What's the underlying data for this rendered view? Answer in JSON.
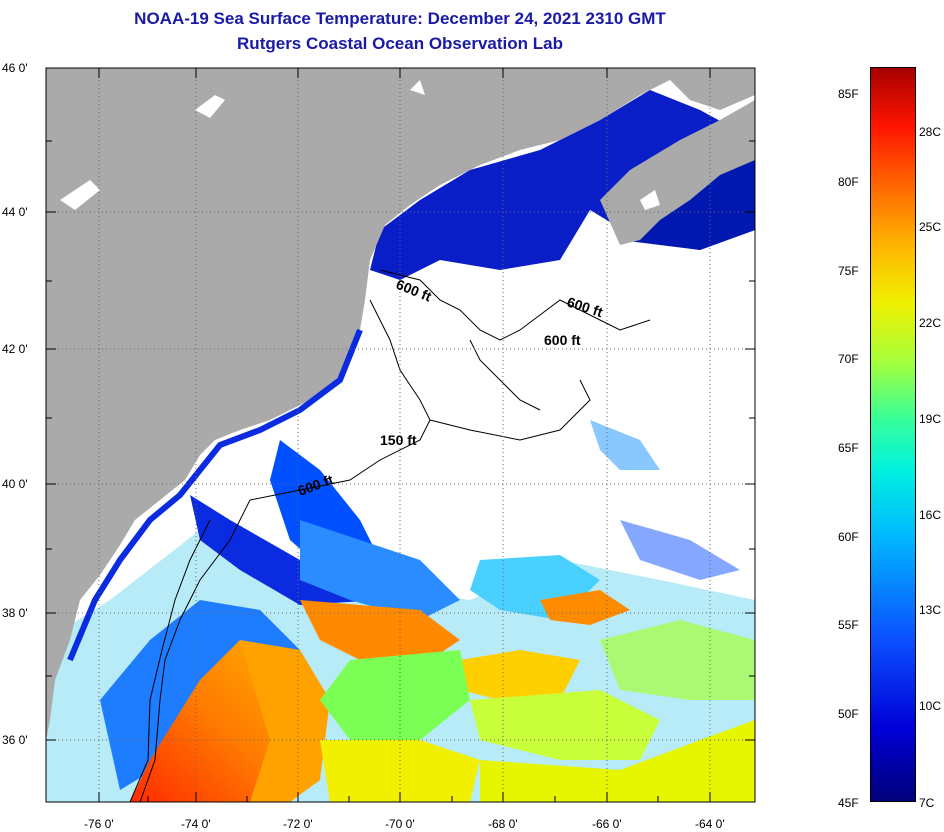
{
  "title": {
    "line1": "NOAA-19 Sea Surface Temperature:  December 24, 2021 2310 GMT",
    "line2": "Rutgers Coastal Ocean Observation Lab"
  },
  "axes": {
    "lat_labels": [
      "46 0'",
      "44 0'",
      "42 0'",
      "40 0'",
      "38 0'",
      "36 0'"
    ],
    "lon_labels": [
      "-76 0'",
      "-74 0'",
      "-72 0'",
      "-70 0'",
      "-68 0'",
      "-66 0'",
      "-64 0'"
    ]
  },
  "contours": {
    "c1": "600 ft",
    "c2": "600 ft",
    "c3": "600 ft",
    "c4": "150 ft",
    "c5": "600 ft"
  },
  "colorbar": {
    "fahrenheit": [
      "85F",
      "80F",
      "75F",
      "70F",
      "65F",
      "60F",
      "55F",
      "50F",
      "45F"
    ],
    "celsius": [
      "28C",
      "25C",
      "22C",
      "19C",
      "16C",
      "13C",
      "10C",
      "7C"
    ]
  },
  "colors": {
    "land": "#aaaaaa",
    "cloud": "#ffffff",
    "title": "#1a1aa6"
  }
}
